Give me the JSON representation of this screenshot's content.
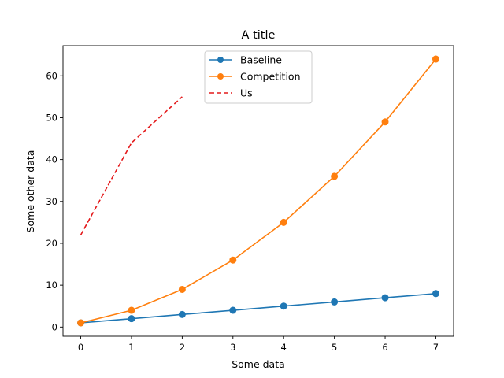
{
  "chart_data": {
    "type": "line",
    "title": "A title",
    "xlabel": "Some data",
    "ylabel": "Some other data",
    "xlim": [
      -0.35,
      7.35
    ],
    "ylim": [
      -2.2,
      67.2
    ],
    "x_ticks": [
      0,
      1,
      2,
      3,
      4,
      5,
      6,
      7
    ],
    "x_tick_labels": [
      "0",
      "1",
      "2",
      "3",
      "4",
      "5",
      "6",
      "7"
    ],
    "y_ticks": [
      0,
      10,
      20,
      30,
      40,
      50,
      60
    ],
    "y_tick_labels": [
      "0",
      "10",
      "20",
      "30",
      "40",
      "50",
      "60"
    ],
    "grid": false,
    "legend_position": "upper center",
    "series": [
      {
        "name": "Baseline",
        "color": "#1f77b4",
        "style": "solid",
        "marker": "circle",
        "x": [
          0,
          1,
          2,
          3,
          4,
          5,
          6,
          7
        ],
        "values": [
          1,
          2,
          3,
          4,
          5,
          6,
          7,
          8
        ]
      },
      {
        "name": "Competition",
        "color": "#ff7f0e",
        "style": "solid",
        "marker": "circle",
        "x": [
          0,
          1,
          2,
          3,
          4,
          5,
          6,
          7
        ],
        "values": [
          1,
          4,
          9,
          16,
          25,
          36,
          49,
          64
        ]
      },
      {
        "name": "Us",
        "color": "#e41a1c",
        "style": "dashed",
        "marker": "none",
        "x": [
          0,
          1,
          2
        ],
        "values": [
          22,
          44,
          55
        ]
      }
    ]
  }
}
